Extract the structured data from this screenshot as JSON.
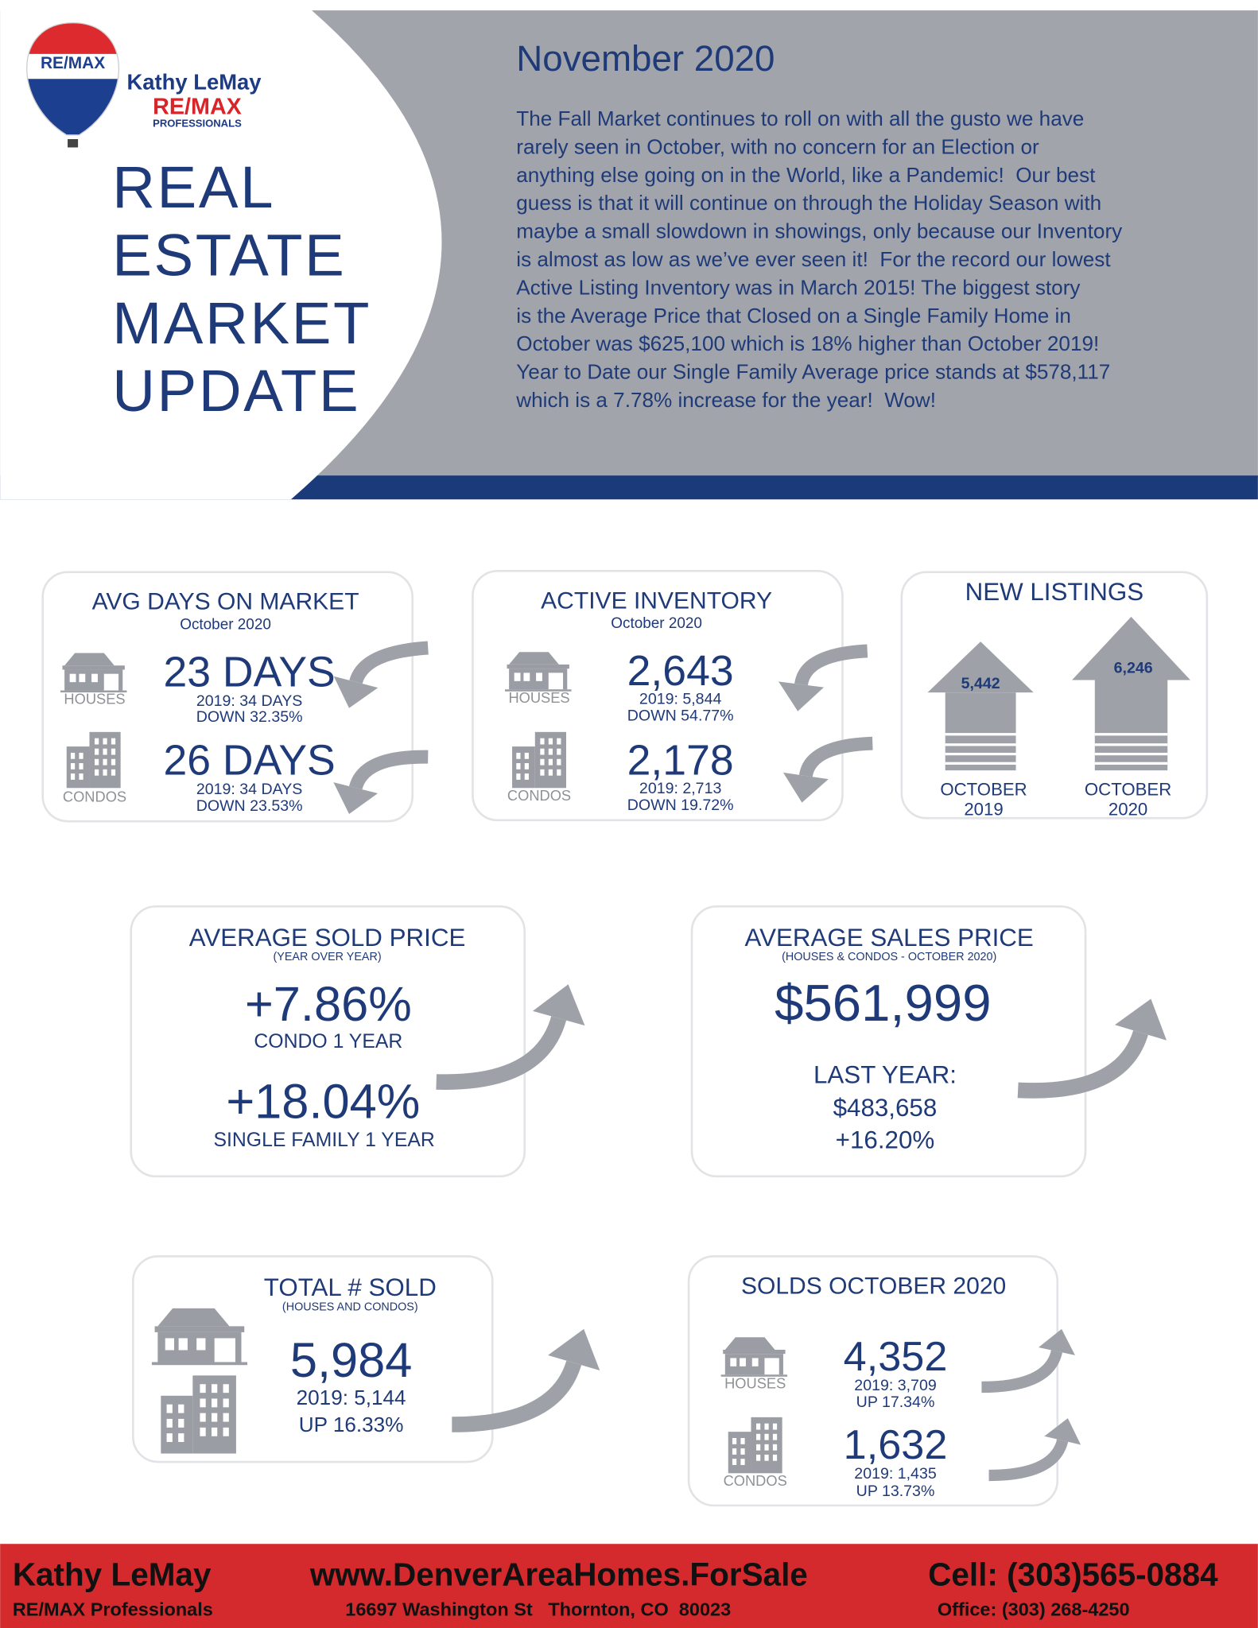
{
  "header": {
    "logo": {
      "balloon": "RE/MAX",
      "name": "Kathy LeMay",
      "brand": "RE/MAX",
      "sub": "PROFESSIONALS"
    },
    "title": [
      "REAL",
      "ESTATE",
      "MARKET",
      "UPDATE"
    ],
    "date": "November 2020",
    "body": [
      "The Fall Market continues to roll on with all the gusto we have",
      "rarely seen in October, with no concern for an Election or",
      "anything else going on in the World, like a Pandemic!  Our best",
      "guess is that it will continue on through the Holiday Season with",
      "maybe a small slowdown in showings, only because our Inventory",
      "is almost as low as we’ve ever seen it!  For the record our lowest",
      "Active Listing Inventory was in March 2015! The biggest story",
      "is the Average Price that Closed on a Single Family Home in",
      "October was $625,100 which is 18% higher than October 2019!",
      "Year to Date our Single Family Average price stands at $578,117",
      "which is a 7.78% increase for the year!  Wow!"
    ]
  },
  "avg_days": {
    "title": "AVG DAYS ON MARKET",
    "period": "October 2020",
    "rows": [
      {
        "icon_label": "HOUSES",
        "value": "23 DAYS",
        "prior": "2019: 34 DAYS",
        "change": "DOWN 32.35%"
      },
      {
        "icon_label": "CONDOS",
        "value": "26 DAYS",
        "prior": "2019: 34 DAYS",
        "change": "DOWN 23.53%"
      }
    ]
  },
  "active_inventory": {
    "title": "ACTIVE INVENTORY",
    "period": "October 2020",
    "rows": [
      {
        "icon_label": "HOUSES",
        "value": "2,643",
        "prior": "2019: 5,844",
        "change": "DOWN 54.77%"
      },
      {
        "icon_label": "CONDOS",
        "value": "2,178",
        "prior": "2019: 2,713",
        "change": "DOWN 19.72%"
      }
    ]
  },
  "new_listings": {
    "title": "NEW LISTINGS",
    "bars": [
      {
        "value": "5,442",
        "label": [
          "OCTOBER",
          "2019"
        ]
      },
      {
        "value": "6,246",
        "label": [
          "OCTOBER",
          "2020"
        ]
      }
    ]
  },
  "avg_sold_price": {
    "title": "AVERAGE SOLD PRICE",
    "subtitle": "(YEAR OVER YEAR)",
    "items": [
      {
        "value": "+7.86%",
        "label": "CONDO 1 YEAR"
      },
      {
        "value": "+18.04%",
        "label": "SINGLE FAMILY 1 YEAR"
      }
    ]
  },
  "avg_sales_price": {
    "title": "AVERAGE SALES PRICE",
    "subtitle": "(HOUSES & CONDOS - OCTOBER 2020)",
    "value": "$561,999",
    "last_year_label": "LAST YEAR:",
    "last_year": "$483,658",
    "change": "+16.20%"
  },
  "total_sold": {
    "title": "TOTAL # SOLD",
    "subtitle": "(HOUSES AND CONDOS)",
    "value": "5,984",
    "prior": "2019: 5,144",
    "change": "UP 16.33%"
  },
  "solds": {
    "title": "SOLDS OCTOBER 2020",
    "rows": [
      {
        "icon_label": "HOUSES",
        "value": "4,352",
        "prior": "2019: 3,709",
        "change": "UP 17.34%"
      },
      {
        "icon_label": "CONDOS",
        "value": "1,632",
        "prior": "2019: 1,435",
        "change": "UP 13.73%"
      }
    ]
  },
  "footer": {
    "name": "Kathy LeMay",
    "company": "RE/MAX Professionals",
    "website": "www.DenverAreaHomes.ForSale",
    "address": "16697 Washington St   Thornton, CO  80023",
    "cell": "Cell: (303)565-0884",
    "office": "Office: (303) 268-4250"
  }
}
